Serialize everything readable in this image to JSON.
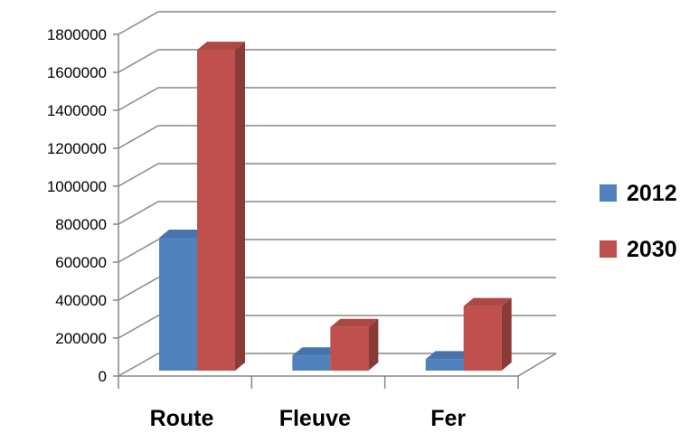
{
  "chart_data": {
    "type": "bar",
    "categories": [
      "Route",
      "Fleuve",
      "Fer"
    ],
    "series": [
      {
        "name": "2012",
        "values": [
          700000,
          80000,
          60000
        ],
        "color": "#4F81BD"
      },
      {
        "name": "2030",
        "values": [
          1690000,
          230000,
          340000
        ],
        "color": "#C0504D"
      }
    ],
    "ylim": [
      0,
      1800000
    ],
    "yticks": [
      0,
      200000,
      400000,
      600000,
      800000,
      1000000,
      1200000,
      1400000,
      1600000,
      1800000
    ],
    "grid": true,
    "three_d": true,
    "legend_position": "right",
    "title": "",
    "xlabel": "",
    "ylabel": ""
  }
}
